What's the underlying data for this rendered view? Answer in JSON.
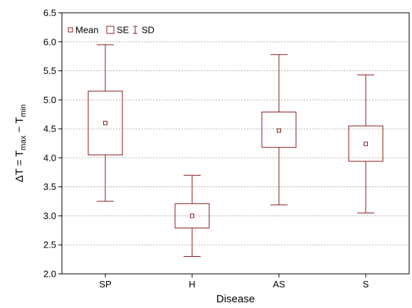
{
  "chart_data": {
    "type": "box",
    "categories": [
      "SP",
      "H",
      "AS",
      "S"
    ],
    "series": [
      {
        "category": "SP",
        "mean": 4.6,
        "se_low": 4.05,
        "se_high": 5.15,
        "sd_low": 3.25,
        "sd_high": 5.95
      },
      {
        "category": "H",
        "mean": 3.0,
        "se_low": 2.79,
        "se_high": 3.21,
        "sd_low": 2.3,
        "sd_high": 3.7
      },
      {
        "category": "AS",
        "mean": 4.47,
        "se_low": 4.18,
        "se_high": 4.79,
        "sd_low": 3.19,
        "sd_high": 5.78
      },
      {
        "category": "S",
        "mean": 4.24,
        "se_low": 3.94,
        "se_high": 4.55,
        "sd_low": 3.05,
        "sd_high": 5.43
      }
    ],
    "xlabel": "Disease",
    "ylabel": {
      "prefix": "ΔT = T",
      "sub1": "max",
      "mid": " − T",
      "sub2": "min"
    },
    "ylim": [
      2.0,
      6.5
    ],
    "yticks": [
      "2.0",
      "2.5",
      "3.0",
      "3.5",
      "4.0",
      "4.5",
      "5.0",
      "5.5",
      "6.0",
      "6.5"
    ],
    "grid": true,
    "legend_position": "top-left",
    "legend": {
      "mean": "Mean",
      "se": "SE",
      "sd": "SD"
    },
    "color": "#8b1a1a",
    "grid_color": "#b0b0b0"
  }
}
